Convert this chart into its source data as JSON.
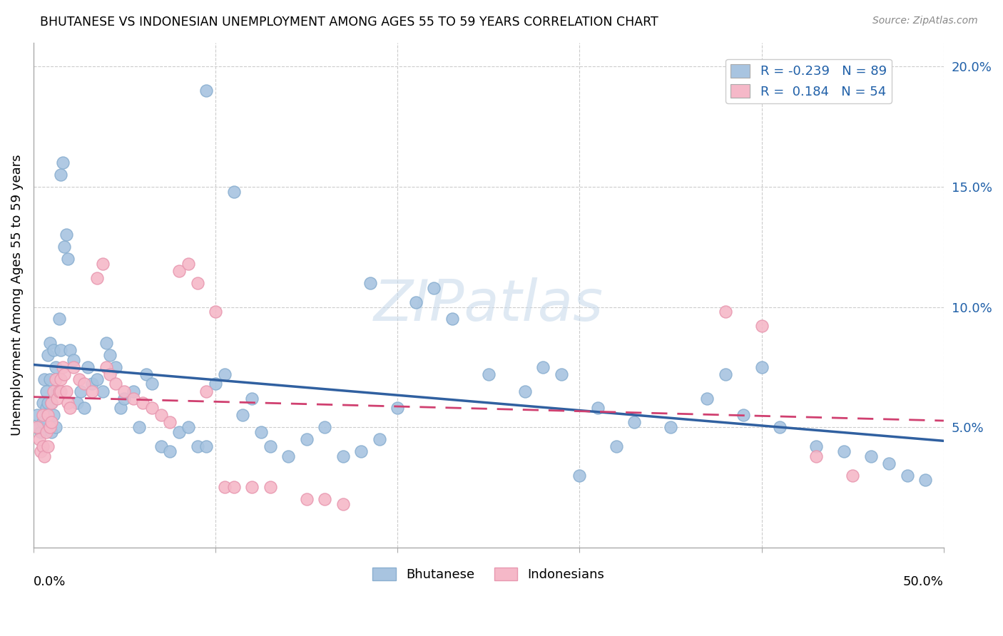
{
  "title": "BHUTANESE VS INDONESIAN UNEMPLOYMENT AMONG AGES 55 TO 59 YEARS CORRELATION CHART",
  "source": "Source: ZipAtlas.com",
  "ylabel": "Unemployment Among Ages 55 to 59 years",
  "bhutanese_R": "-0.239",
  "bhutanese_N": "89",
  "indonesian_R": "0.184",
  "indonesian_N": "54",
  "blue_color": "#a8c4e0",
  "blue_edge": "#8aafd0",
  "pink_color": "#f5b8c8",
  "pink_edge": "#e898b0",
  "blue_line_color": "#3060a0",
  "pink_line_color": "#d04070",
  "watermark": "ZIPatlas",
  "xlim": [
    0.0,
    0.5
  ],
  "ylim": [
    0.0,
    0.21
  ],
  "right_yticks": [
    0.05,
    0.1,
    0.15,
    0.2
  ],
  "right_ytick_labels": [
    "5.0%",
    "10.0%",
    "15.0%",
    "20.0%"
  ],
  "blue_x": [
    0.002,
    0.003,
    0.004,
    0.005,
    0.005,
    0.006,
    0.007,
    0.007,
    0.008,
    0.008,
    0.009,
    0.009,
    0.01,
    0.01,
    0.011,
    0.011,
    0.012,
    0.012,
    0.013,
    0.014,
    0.015,
    0.015,
    0.016,
    0.017,
    0.018,
    0.019,
    0.02,
    0.022,
    0.024,
    0.026,
    0.028,
    0.03,
    0.032,
    0.035,
    0.038,
    0.04,
    0.042,
    0.045,
    0.048,
    0.05,
    0.055,
    0.058,
    0.062,
    0.065,
    0.07,
    0.075,
    0.08,
    0.085,
    0.09,
    0.095,
    0.1,
    0.105,
    0.11,
    0.115,
    0.12,
    0.125,
    0.13,
    0.14,
    0.15,
    0.16,
    0.17,
    0.18,
    0.19,
    0.2,
    0.21,
    0.22,
    0.23,
    0.25,
    0.27,
    0.29,
    0.31,
    0.33,
    0.35,
    0.37,
    0.39,
    0.41,
    0.43,
    0.445,
    0.46,
    0.47,
    0.48,
    0.49,
    0.095,
    0.3,
    0.185,
    0.28,
    0.38,
    0.4,
    0.32
  ],
  "blue_y": [
    0.055,
    0.05,
    0.048,
    0.06,
    0.052,
    0.07,
    0.058,
    0.065,
    0.08,
    0.06,
    0.085,
    0.07,
    0.048,
    0.06,
    0.082,
    0.055,
    0.075,
    0.05,
    0.065,
    0.095,
    0.155,
    0.082,
    0.16,
    0.125,
    0.13,
    0.12,
    0.082,
    0.078,
    0.06,
    0.065,
    0.058,
    0.075,
    0.068,
    0.07,
    0.065,
    0.085,
    0.08,
    0.075,
    0.058,
    0.062,
    0.065,
    0.05,
    0.072,
    0.068,
    0.042,
    0.04,
    0.048,
    0.05,
    0.042,
    0.042,
    0.068,
    0.072,
    0.148,
    0.055,
    0.062,
    0.048,
    0.042,
    0.038,
    0.045,
    0.05,
    0.038,
    0.04,
    0.045,
    0.058,
    0.102,
    0.108,
    0.095,
    0.072,
    0.065,
    0.072,
    0.058,
    0.052,
    0.05,
    0.062,
    0.055,
    0.05,
    0.042,
    0.04,
    0.038,
    0.035,
    0.03,
    0.028,
    0.19,
    0.03,
    0.11,
    0.075,
    0.072,
    0.075,
    0.042
  ],
  "pink_x": [
    0.002,
    0.003,
    0.004,
    0.005,
    0.005,
    0.006,
    0.007,
    0.008,
    0.008,
    0.009,
    0.01,
    0.01,
    0.011,
    0.012,
    0.013,
    0.014,
    0.015,
    0.015,
    0.016,
    0.017,
    0.018,
    0.019,
    0.02,
    0.022,
    0.025,
    0.028,
    0.032,
    0.035,
    0.038,
    0.04,
    0.042,
    0.045,
    0.05,
    0.055,
    0.06,
    0.065,
    0.07,
    0.075,
    0.08,
    0.085,
    0.09,
    0.095,
    0.1,
    0.105,
    0.11,
    0.12,
    0.13,
    0.15,
    0.16,
    0.17,
    0.38,
    0.4,
    0.43,
    0.45
  ],
  "pink_y": [
    0.05,
    0.045,
    0.04,
    0.055,
    0.042,
    0.038,
    0.048,
    0.055,
    0.042,
    0.05,
    0.06,
    0.052,
    0.065,
    0.07,
    0.062,
    0.065,
    0.07,
    0.065,
    0.075,
    0.072,
    0.065,
    0.06,
    0.058,
    0.075,
    0.07,
    0.068,
    0.065,
    0.112,
    0.118,
    0.075,
    0.072,
    0.068,
    0.065,
    0.062,
    0.06,
    0.058,
    0.055,
    0.052,
    0.115,
    0.118,
    0.11,
    0.065,
    0.098,
    0.025,
    0.025,
    0.025,
    0.025,
    0.02,
    0.02,
    0.018,
    0.098,
    0.092,
    0.038,
    0.03
  ]
}
